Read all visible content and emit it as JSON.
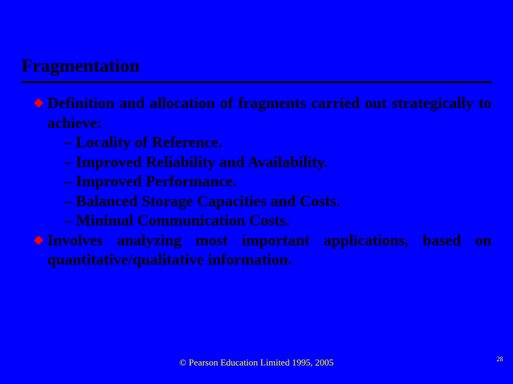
{
  "slide": {
    "background_color": "#0000ff",
    "title": {
      "text": "Fragmentation",
      "color": "#000000",
      "fontsize": 26,
      "underline_color": "#000000",
      "underline_thickness": 3
    },
    "bullet_marker": {
      "glyph": "◆",
      "color": "#ff0000"
    },
    "body_text_color": "#000000",
    "body_fontsize": 22,
    "bullets": [
      {
        "lead": "Definition and allocation of fragments carried out strategically to achieve:",
        "subs": [
          "– Locality of Reference.",
          "– Improved Reliability and Availability.",
          "– Improved Performance.",
          "– Balanced Storage Capacities and Costs.",
          "– Minimal Communication Costs."
        ]
      },
      {
        "lead": "Involves analyzing most important applications, based on quantitative/qualitative information.",
        "subs": []
      }
    ],
    "footer": {
      "text": "© Pearson Education Limited 1995, 2005",
      "color": "#ffff00",
      "fontsize": 13
    },
    "page_number": {
      "text": "28",
      "color": "#ffff00",
      "fontsize": 9
    }
  }
}
